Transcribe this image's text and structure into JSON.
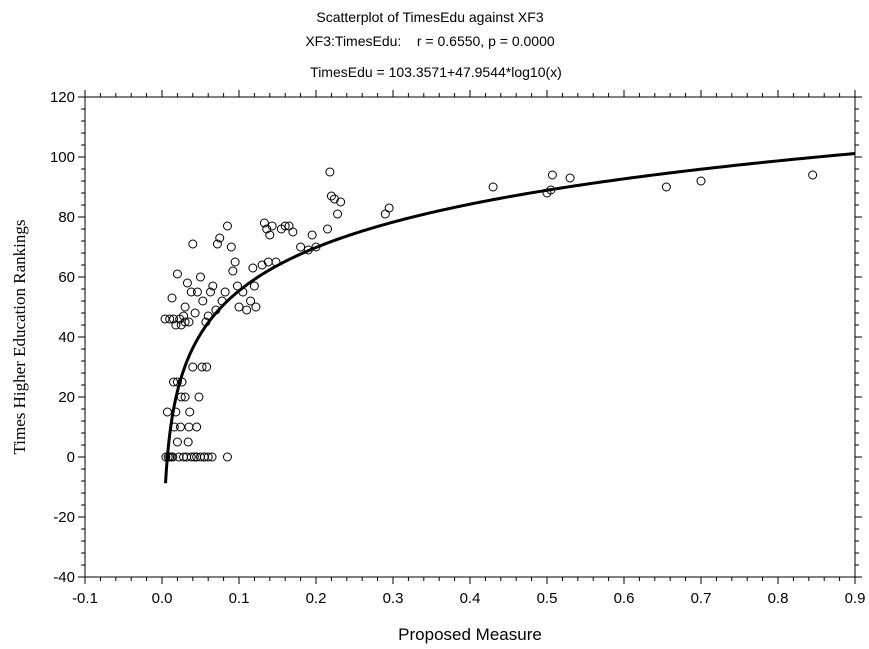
{
  "chart_data": {
    "type": "scatter",
    "title": "Scatterplot of TimesEdu against XF3",
    "subtitle": "XF3:TimesEdu:    r = 0.6550, p = 0.0000",
    "fit_label": "TimesEdu = 103.3571+47.9544*log10(x)",
    "xlabel": "Proposed Measure",
    "ylabel": "Times Higher Education Rankings",
    "xlim": [
      -0.1,
      0.9
    ],
    "ylim": [
      -40,
      120
    ],
    "x_ticks": [
      "-0.1",
      "0.0",
      "0.1",
      "0.2",
      "0.3",
      "0.4",
      "0.5",
      "0.6",
      "0.7",
      "0.8",
      "0.9"
    ],
    "y_ticks": [
      "120",
      "100",
      "80",
      "60",
      "40",
      "20",
      "0",
      "-20",
      "-40"
    ],
    "grid": false,
    "fit": {
      "a": 103.3571,
      "b": 47.9544,
      "x_start": 0.0046,
      "x_end": 0.9
    },
    "points": [
      [
        0.004,
        46
      ],
      [
        0.007,
        15
      ],
      [
        0.01,
        46
      ],
      [
        0.013,
        53
      ],
      [
        0.015,
        46
      ],
      [
        0.018,
        44
      ],
      [
        0.02,
        61
      ],
      [
        0.023,
        46
      ],
      [
        0.025,
        44
      ],
      [
        0.028,
        47
      ],
      [
        0.03,
        50
      ],
      [
        0.033,
        58
      ],
      [
        0.035,
        45
      ],
      [
        0.038,
        55
      ],
      [
        0.04,
        71
      ],
      [
        0.043,
        48
      ],
      [
        0.046,
        55
      ],
      [
        0.05,
        60
      ],
      [
        0.053,
        52
      ],
      [
        0.057,
        45
      ],
      [
        0.06,
        47
      ],
      [
        0.063,
        55
      ],
      [
        0.066,
        57
      ],
      [
        0.07,
        49
      ],
      [
        0.072,
        71
      ],
      [
        0.075,
        73
      ],
      [
        0.078,
        52
      ],
      [
        0.082,
        55
      ],
      [
        0.085,
        77
      ],
      [
        0.09,
        70
      ],
      [
        0.092,
        62
      ],
      [
        0.095,
        65
      ],
      [
        0.098,
        57
      ],
      [
        0.1,
        50
      ],
      [
        0.105,
        55
      ],
      [
        0.11,
        49
      ],
      [
        0.115,
        52
      ],
      [
        0.118,
        63
      ],
      [
        0.12,
        57
      ],
      [
        0.122,
        50
      ],
      [
        0.13,
        64
      ],
      [
        0.133,
        78
      ],
      [
        0.136,
        76
      ],
      [
        0.138,
        65
      ],
      [
        0.14,
        74
      ],
      [
        0.143,
        77
      ],
      [
        0.148,
        65
      ],
      [
        0.155,
        76
      ],
      [
        0.16,
        77
      ],
      [
        0.165,
        77
      ],
      [
        0.17,
        75
      ],
      [
        0.18,
        70
      ],
      [
        0.19,
        69
      ],
      [
        0.195,
        74
      ],
      [
        0.2,
        70
      ],
      [
        0.215,
        76
      ],
      [
        0.218,
        95
      ],
      [
        0.22,
        87
      ],
      [
        0.224,
        86
      ],
      [
        0.228,
        81
      ],
      [
        0.232,
        85
      ],
      [
        0.29,
        81
      ],
      [
        0.295,
        83
      ],
      [
        0.43,
        90
      ],
      [
        0.5,
        88
      ],
      [
        0.505,
        89
      ],
      [
        0.507,
        94
      ],
      [
        0.53,
        93
      ],
      [
        0.655,
        90
      ],
      [
        0.7,
        92
      ],
      [
        0.845,
        94
      ],
      [
        0.005,
        0
      ],
      [
        0.008,
        0
      ],
      [
        0.01,
        0
      ],
      [
        0.012,
        0
      ],
      [
        0.014,
        0
      ],
      [
        0.016,
        10
      ],
      [
        0.018,
        15
      ],
      [
        0.02,
        5
      ],
      [
        0.022,
        0
      ],
      [
        0.024,
        10
      ],
      [
        0.026,
        25
      ],
      [
        0.028,
        0
      ],
      [
        0.03,
        20
      ],
      [
        0.032,
        0
      ],
      [
        0.034,
        5
      ],
      [
        0.036,
        15
      ],
      [
        0.038,
        0
      ],
      [
        0.04,
        30
      ],
      [
        0.042,
        0
      ],
      [
        0.045,
        10
      ],
      [
        0.048,
        20
      ],
      [
        0.05,
        0
      ],
      [
        0.052,
        30
      ],
      [
        0.055,
        0
      ],
      [
        0.058,
        30
      ],
      [
        0.06,
        0
      ],
      [
        0.065,
        0
      ],
      [
        0.085,
        0
      ],
      [
        0.015,
        25
      ],
      [
        0.02,
        25
      ],
      [
        0.025,
        20
      ],
      [
        0.03,
        45
      ],
      [
        0.035,
        10
      ],
      [
        0.045,
        0
      ],
      [
        0.055,
        0
      ]
    ]
  }
}
